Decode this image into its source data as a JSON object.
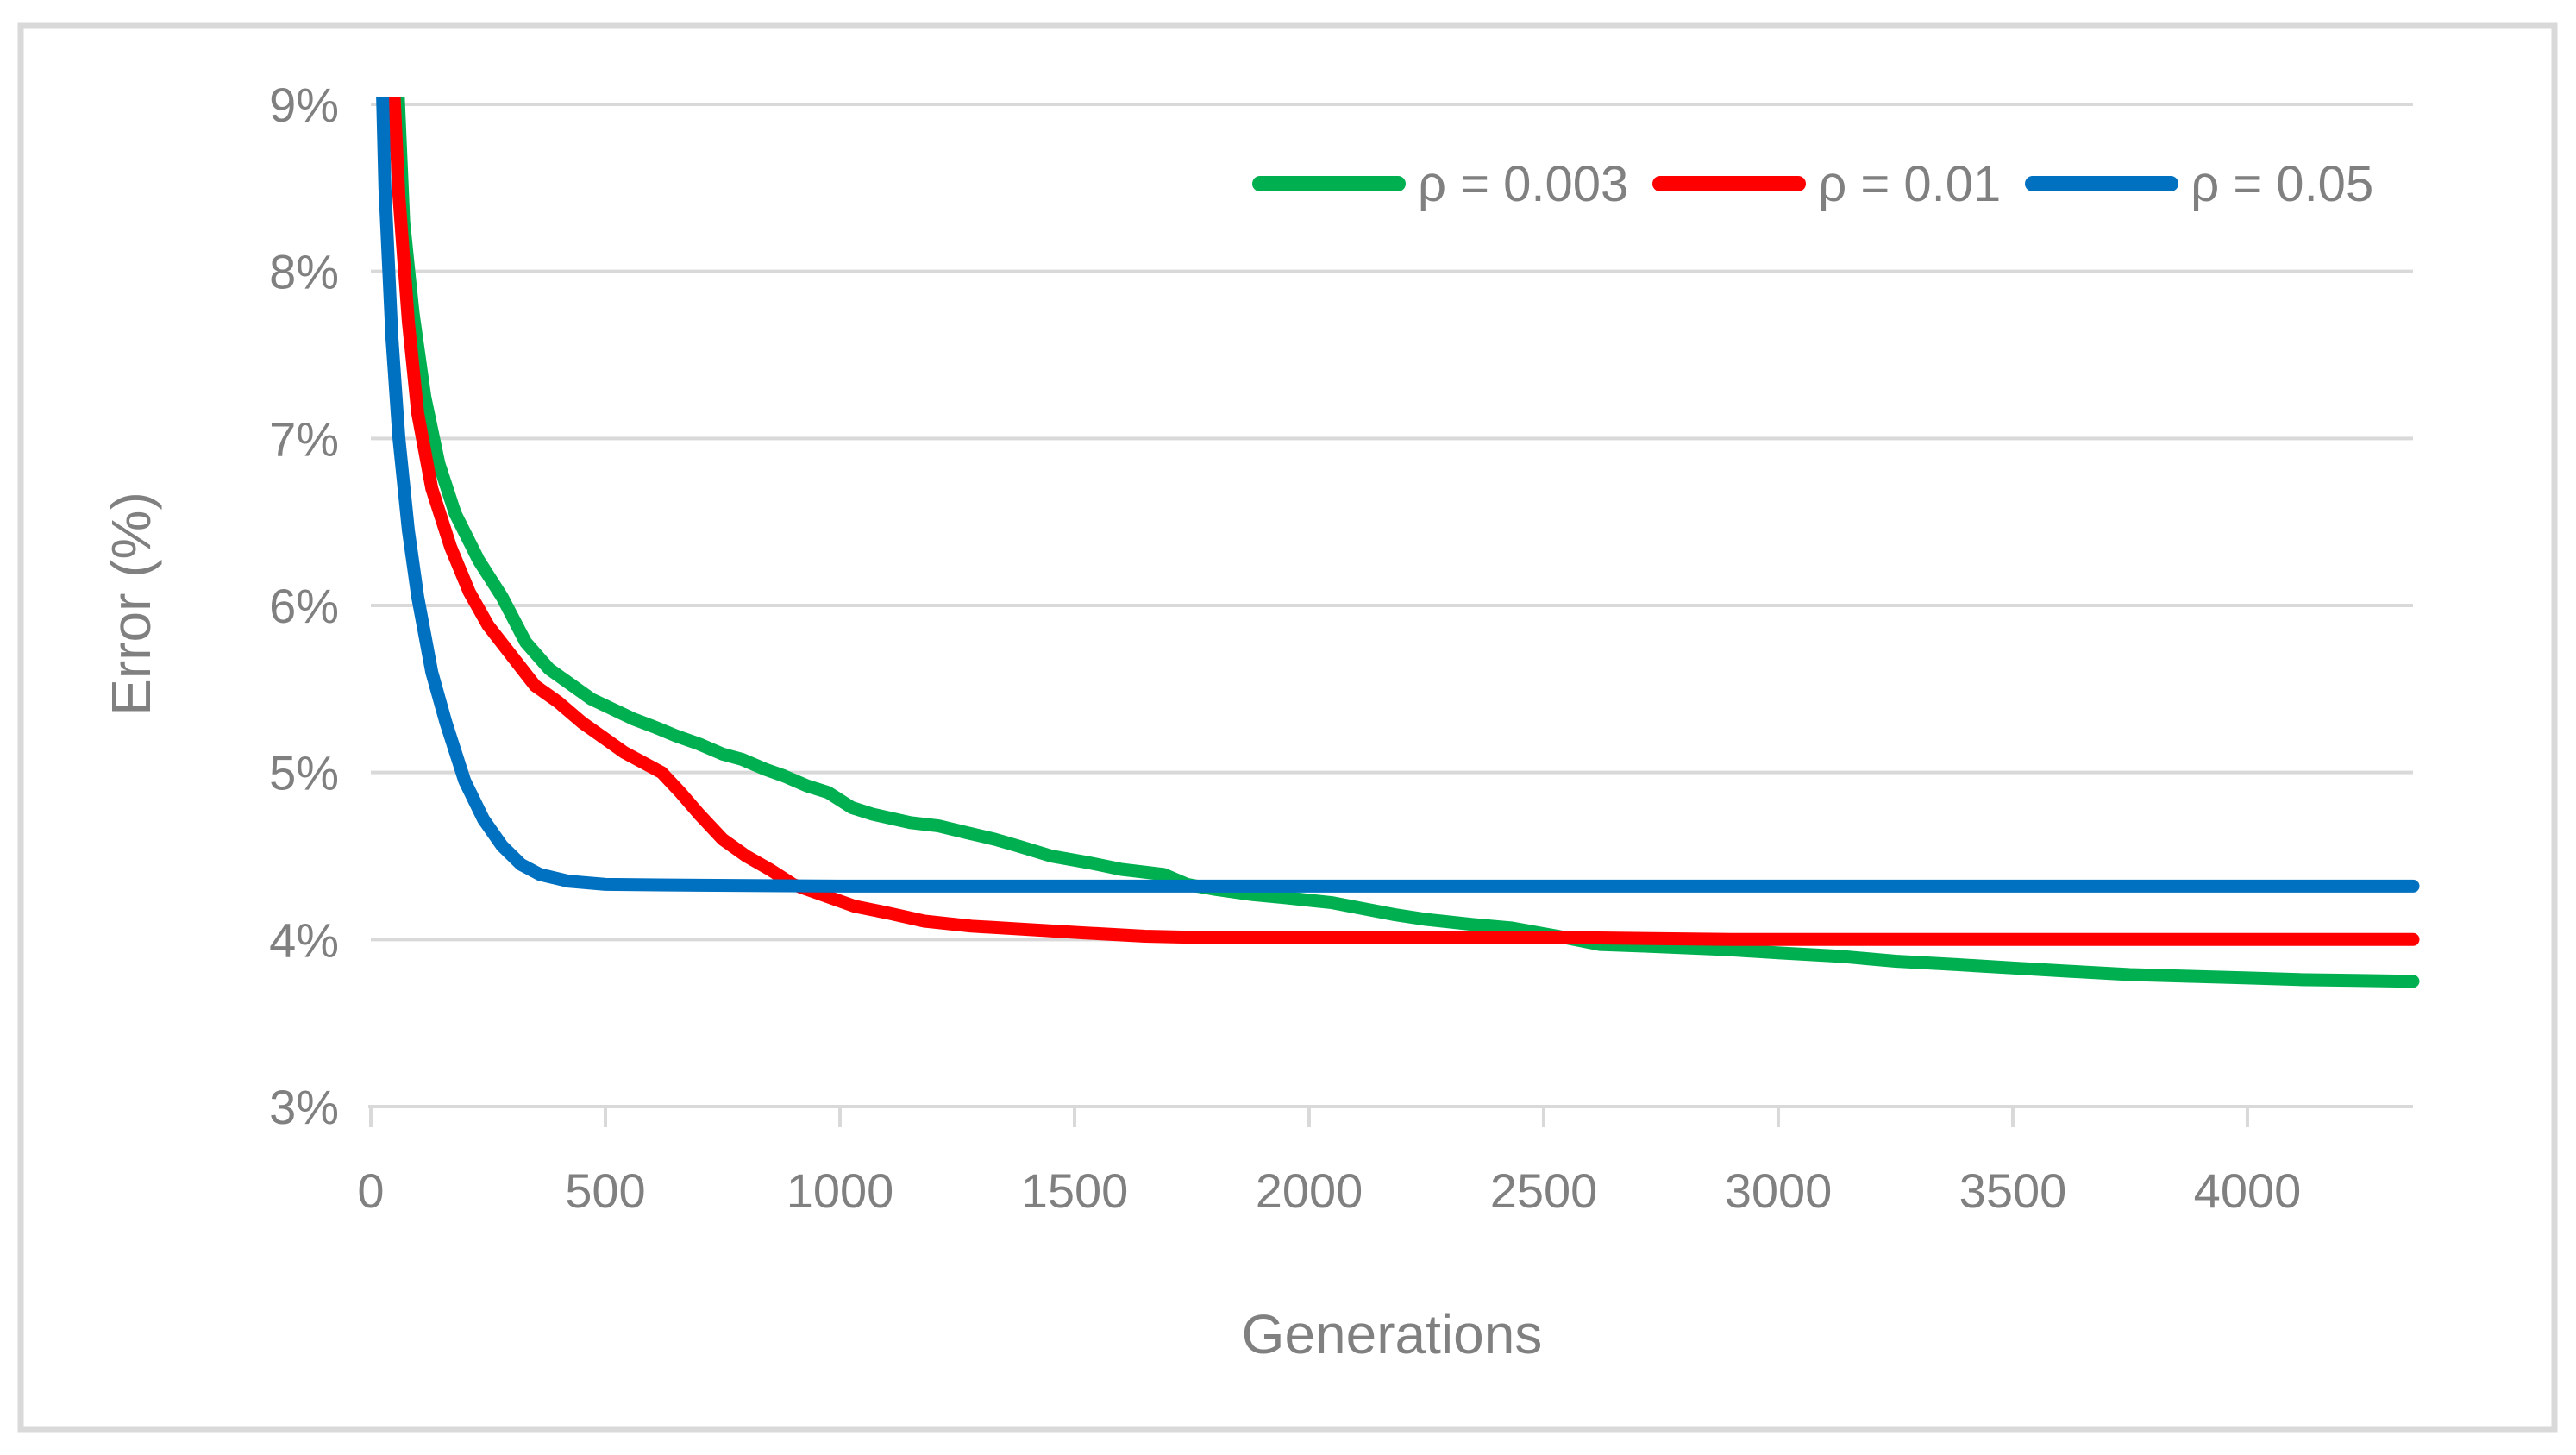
{
  "chart_data": {
    "type": "line",
    "title": "",
    "xlabel": "Generations",
    "ylabel": "Error (%)",
    "xlim": [
      0,
      4353
    ],
    "ylim": [
      3,
      9
    ],
    "grid": "horizontal",
    "legend_position": "top-right-inside",
    "grid_color": "#D9D9D9",
    "text_color": "#808080",
    "x_ticks": [
      {
        "v": 0,
        "label": "0"
      },
      {
        "v": 500,
        "label": "500"
      },
      {
        "v": 1000,
        "label": "1000"
      },
      {
        "v": 1500,
        "label": "1500"
      },
      {
        "v": 2000,
        "label": "2000"
      },
      {
        "v": 2500,
        "label": "2500"
      },
      {
        "v": 3000,
        "label": "3000"
      },
      {
        "v": 3500,
        "label": "3500"
      },
      {
        "v": 4000,
        "label": "4000"
      }
    ],
    "y_ticks": [
      {
        "v": 3,
        "label": "3%"
      },
      {
        "v": 4,
        "label": "4%"
      },
      {
        "v": 5,
        "label": "5%"
      },
      {
        "v": 6,
        "label": "6%"
      },
      {
        "v": 7,
        "label": "7%"
      },
      {
        "v": 8,
        "label": "8%"
      },
      {
        "v": 9,
        "label": "9%"
      }
    ],
    "series": [
      {
        "name": "ρ = 0.003",
        "color": "#00B050",
        "points": [
          [
            45,
            10.5
          ],
          [
            50,
            9.6
          ],
          [
            70,
            8.3
          ],
          [
            90,
            7.75
          ],
          [
            115,
            7.25
          ],
          [
            145,
            6.85
          ],
          [
            180,
            6.55
          ],
          [
            230,
            6.27
          ],
          [
            280,
            6.05
          ],
          [
            330,
            5.78
          ],
          [
            380,
            5.62
          ],
          [
            425,
            5.53
          ],
          [
            470,
            5.44
          ],
          [
            515,
            5.38
          ],
          [
            560,
            5.32
          ],
          [
            607,
            5.27
          ],
          [
            650,
            5.22
          ],
          [
            700,
            5.17
          ],
          [
            750,
            5.11
          ],
          [
            790,
            5.08
          ],
          [
            840,
            5.02
          ],
          [
            880,
            4.98
          ],
          [
            930,
            4.92
          ],
          [
            975,
            4.88
          ],
          [
            1025,
            4.79
          ],
          [
            1070,
            4.75
          ],
          [
            1150,
            4.7
          ],
          [
            1210,
            4.68
          ],
          [
            1270,
            4.64
          ],
          [
            1330,
            4.6
          ],
          [
            1380,
            4.56
          ],
          [
            1450,
            4.5
          ],
          [
            1530,
            4.46
          ],
          [
            1600,
            4.42
          ],
          [
            1690,
            4.39
          ],
          [
            1740,
            4.33
          ],
          [
            1800,
            4.3
          ],
          [
            1875,
            4.27
          ],
          [
            1950,
            4.25
          ],
          [
            2050,
            4.22
          ],
          [
            2180,
            4.15
          ],
          [
            2250,
            4.12
          ],
          [
            2350,
            4.09
          ],
          [
            2430,
            4.07
          ],
          [
            2530,
            4.02
          ],
          [
            2620,
            3.97
          ],
          [
            2720,
            3.96
          ],
          [
            2890,
            3.94
          ],
          [
            3000,
            3.92
          ],
          [
            3130,
            3.9
          ],
          [
            3250,
            3.87
          ],
          [
            3380,
            3.85
          ],
          [
            3500,
            3.83
          ],
          [
            3620,
            3.81
          ],
          [
            3750,
            3.79
          ],
          [
            3870,
            3.78
          ],
          [
            4000,
            3.77
          ],
          [
            4110,
            3.76
          ],
          [
            4230,
            3.755
          ],
          [
            4353,
            3.75
          ]
        ]
      },
      {
        "name": "ρ = 0.01",
        "color": "#FF0000",
        "points": [
          [
            35,
            10.5
          ],
          [
            40,
            9.6
          ],
          [
            60,
            8.45
          ],
          [
            80,
            7.7
          ],
          [
            100,
            7.15
          ],
          [
            130,
            6.7
          ],
          [
            170,
            6.35
          ],
          [
            210,
            6.08
          ],
          [
            250,
            5.88
          ],
          [
            300,
            5.7
          ],
          [
            350,
            5.52
          ],
          [
            400,
            5.42
          ],
          [
            450,
            5.3
          ],
          [
            500,
            5.2
          ],
          [
            540,
            5.12
          ],
          [
            580,
            5.06
          ],
          [
            620,
            5.0
          ],
          [
            660,
            4.88
          ],
          [
            700,
            4.75
          ],
          [
            750,
            4.6
          ],
          [
            800,
            4.5
          ],
          [
            850,
            4.42
          ],
          [
            900,
            4.33
          ],
          [
            950,
            4.28
          ],
          [
            1030,
            4.2
          ],
          [
            1100,
            4.16
          ],
          [
            1180,
            4.11
          ],
          [
            1280,
            4.08
          ],
          [
            1400,
            4.06
          ],
          [
            1520,
            4.04
          ],
          [
            1650,
            4.02
          ],
          [
            1800,
            4.01
          ],
          [
            2000,
            4.01
          ],
          [
            2300,
            4.01
          ],
          [
            2600,
            4.01
          ],
          [
            2900,
            4.0
          ],
          [
            3200,
            4.0
          ],
          [
            3600,
            4.0
          ],
          [
            4000,
            4.0
          ],
          [
            4353,
            4.0
          ]
        ]
      },
      {
        "name": "ρ = 0.05",
        "color": "#0070C0",
        "points": [
          [
            15,
            10.5
          ],
          [
            20,
            9.6
          ],
          [
            30,
            8.5
          ],
          [
            45,
            7.6
          ],
          [
            60,
            7.0
          ],
          [
            80,
            6.45
          ],
          [
            100,
            6.05
          ],
          [
            130,
            5.6
          ],
          [
            160,
            5.3
          ],
          [
            200,
            4.95
          ],
          [
            240,
            4.72
          ],
          [
            280,
            4.56
          ],
          [
            320,
            4.45
          ],
          [
            360,
            4.39
          ],
          [
            420,
            4.35
          ],
          [
            500,
            4.33
          ],
          [
            700,
            4.325
          ],
          [
            1000,
            4.32
          ],
          [
            1500,
            4.32
          ],
          [
            2000,
            4.32
          ],
          [
            2500,
            4.32
          ],
          [
            3000,
            4.32
          ],
          [
            3500,
            4.32
          ],
          [
            4000,
            4.32
          ],
          [
            4353,
            4.32
          ]
        ]
      }
    ]
  }
}
